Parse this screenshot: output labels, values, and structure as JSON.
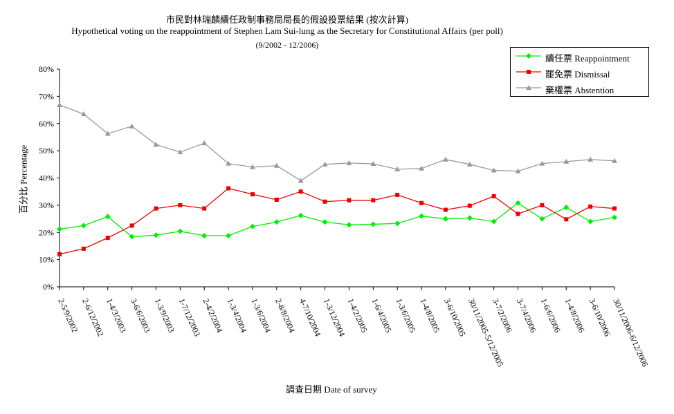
{
  "chart_data": {
    "type": "line",
    "title": "市民對林瑞麟續任政制事務局局長的假設投票結果 (按次計算)",
    "subtitle": "Hypothetical voting on the reappointment of Stephen Lam Sui-lung as the Secretary for Constitutional Affairs (per poll)",
    "period": "(9/2002 - 12/2006)",
    "xlabel": "調查日期 Date of survey",
    "ylabel": "百分比 Percentage",
    "ylim": [
      0,
      80
    ],
    "yticks": [
      "0%",
      "10%",
      "20%",
      "30%",
      "40%",
      "50%",
      "60%",
      "70%",
      "80%"
    ],
    "legend_position": "top-right",
    "categories": [
      "2-5/9/2002",
      "2-6/12/2002",
      "1-4/3/2003",
      "3-6/6/2003",
      "1-3/9/2003",
      "1-7/12/2003",
      "2-4/2/2004",
      "1-3/4/2004",
      "1-3/6/2004",
      "2-8/8/2004",
      "4-7/10/2004",
      "1-3/12/2004",
      "1-4/2/2005",
      "1-6/4/2005",
      "1-3/6/2005",
      "1-4/8/2005",
      "3-6/10/2005",
      "30/11/2005-5/12/2005",
      "3-7/2/2006",
      "3-7/4/2006",
      "1-6/6/2006",
      "1-4/8/2006",
      "3-6/10/2006",
      "30/11/2006-6/12/2006"
    ],
    "series": [
      {
        "name": "續任票  Reappointment",
        "color": "#00ee00",
        "marker": "diamond",
        "values": [
          21.2,
          22.5,
          25.8,
          18.4,
          19.0,
          20.4,
          18.8,
          18.8,
          22.2,
          23.8,
          26.2,
          23.8,
          22.8,
          23.0,
          23.3,
          26.0,
          25.0,
          25.3,
          24.0,
          30.8,
          25.0,
          29.2,
          24.0,
          25.5
        ]
      },
      {
        "name": "罷免票  Dismissal",
        "color": "#ee0000",
        "marker": "square",
        "values": [
          12.0,
          14.0,
          18.0,
          22.5,
          28.8,
          30.0,
          28.8,
          36.2,
          34.0,
          32.0,
          35.0,
          31.3,
          31.8,
          31.8,
          33.8,
          30.8,
          28.3,
          29.8,
          33.3,
          26.8,
          30.0,
          24.8,
          29.5,
          28.8
        ]
      },
      {
        "name": "棄權票  Abstention",
        "color": "#999999",
        "marker": "triangle",
        "values": [
          66.8,
          63.5,
          56.3,
          59.0,
          52.3,
          49.5,
          52.8,
          45.3,
          44.0,
          44.5,
          39.0,
          45.0,
          45.5,
          45.2,
          43.2,
          43.5,
          46.8,
          45.0,
          42.8,
          42.5,
          45.3,
          46.0,
          46.8,
          46.3
        ]
      }
    ]
  }
}
